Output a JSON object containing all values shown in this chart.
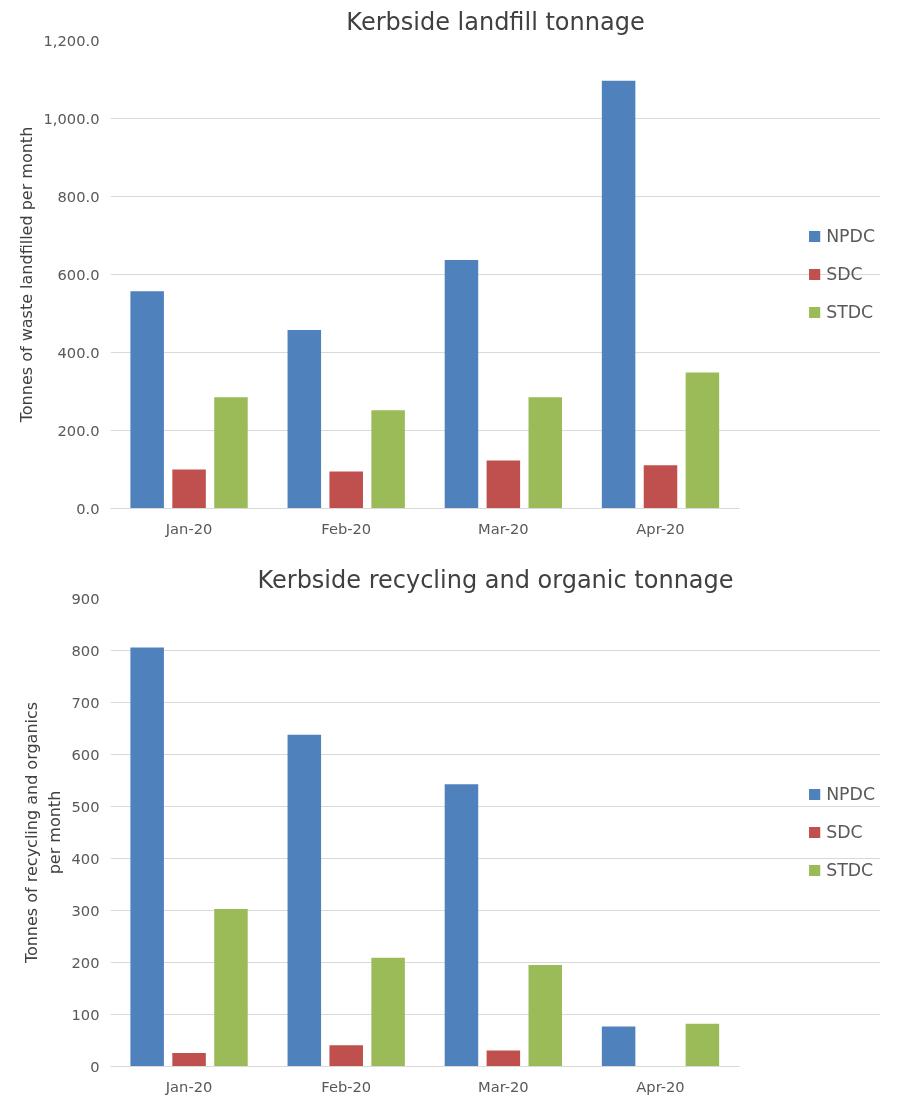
{
  "chart_data": [
    {
      "type": "bar",
      "title": "Kerbside landfill tonnage",
      "ylabel": "Tonnes of waste landfilled per month",
      "categories": [
        "Jan-20",
        "Feb-20",
        "Mar-20",
        "Apr-20"
      ],
      "series": [
        {
          "name": "NPDC",
          "color": "#4f81bd",
          "values": [
            557,
            458,
            637,
            1097
          ]
        },
        {
          "name": "SDC",
          "color": "#c0504d",
          "values": [
            100,
            95,
            123,
            111
          ]
        },
        {
          "name": "STDC",
          "color": "#9bbb59",
          "values": [
            285,
            252,
            285,
            349
          ]
        }
      ],
      "ylim": [
        0,
        1200
      ],
      "yticks": [
        {
          "value": 0,
          "label": "0.0"
        },
        {
          "value": 200,
          "label": "200.0"
        },
        {
          "value": 400,
          "label": "400.0"
        },
        {
          "value": 600,
          "label": "600.0"
        },
        {
          "value": 800,
          "label": "800.0"
        },
        {
          "value": 1000,
          "label": "1,000.0"
        },
        {
          "value": 1200,
          "label": "1,200.0"
        }
      ],
      "grid": "y",
      "legend": "right"
    },
    {
      "type": "bar",
      "title": "Kerbside recycling and organic tonnage",
      "ylabel": "Tonnes of recycling and organics per month",
      "categories": [
        "Jan-20",
        "Feb-20",
        "Mar-20",
        "Apr-20"
      ],
      "series": [
        {
          "name": "NPDC",
          "color": "#4f81bd",
          "values": [
            806,
            638,
            543,
            77
          ]
        },
        {
          "name": "SDC",
          "color": "#c0504d",
          "values": [
            26,
            41,
            31,
            0
          ]
        },
        {
          "name": "STDC",
          "color": "#9bbb59",
          "values": [
            303,
            209,
            195,
            82
          ]
        }
      ],
      "ylim": [
        0,
        900
      ],
      "yticks": [
        0,
        100,
        200,
        300,
        400,
        500,
        600,
        700,
        800,
        900
      ],
      "grid": "y",
      "legend": "right"
    }
  ]
}
